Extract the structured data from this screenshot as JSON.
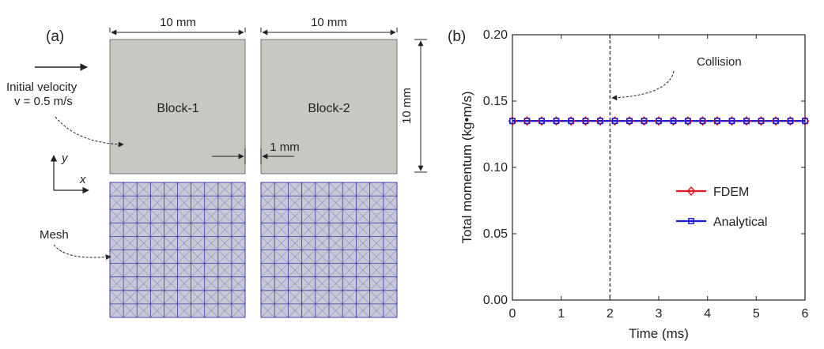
{
  "panel_a": {
    "label": "(a)",
    "dim_width_1": "10 mm",
    "dim_width_2": "10 mm",
    "dim_height": "10 mm",
    "gap_label": "1 mm",
    "block1_label": "Block-1",
    "block2_label": "Block-2",
    "velocity_line1": "Initial velocity",
    "velocity_line2": "v = 0.5 m/s",
    "axis_x": "x",
    "axis_y": "y",
    "mesh_label": "Mesh",
    "block_color": "#c9c7c2",
    "mesh_fill": "#c8c9d6",
    "mesh_line_color": "#3a3aa8"
  },
  "chart_data": {
    "type": "line",
    "panel_label": "(b)",
    "xlabel": "Time (ms)",
    "ylabel": "Total momentum (kg•m/s)",
    "xlim": [
      0,
      6
    ],
    "ylim": [
      0,
      0.2
    ],
    "xticks": [
      "0",
      "1",
      "2",
      "3",
      "4",
      "5",
      "6"
    ],
    "yticks": [
      "0.00",
      "0.05",
      "0.10",
      "0.15",
      "0.20"
    ],
    "x": [
      0,
      0.3,
      0.6,
      0.9,
      1.2,
      1.5,
      1.8,
      2.1,
      2.4,
      2.7,
      3.0,
      3.3,
      3.6,
      3.9,
      4.2,
      4.5,
      4.8,
      5.1,
      5.4,
      5.7,
      6.0
    ],
    "series": [
      {
        "name": "FDEM",
        "color": "#e8141b",
        "marker": "diamond",
        "values": [
          0.135,
          0.135,
          0.135,
          0.135,
          0.135,
          0.135,
          0.135,
          0.135,
          0.135,
          0.135,
          0.135,
          0.135,
          0.135,
          0.135,
          0.135,
          0.135,
          0.135,
          0.135,
          0.135,
          0.135,
          0.135
        ]
      },
      {
        "name": "Analytical",
        "color": "#1414d4",
        "marker": "square",
        "values": [
          0.135,
          0.135,
          0.135,
          0.135,
          0.135,
          0.135,
          0.135,
          0.135,
          0.135,
          0.135,
          0.135,
          0.135,
          0.135,
          0.135,
          0.135,
          0.135,
          0.135,
          0.135,
          0.135,
          0.135,
          0.135
        ]
      }
    ],
    "vline_x": 2,
    "annotation": "Collision",
    "legend_position": "right-center"
  }
}
